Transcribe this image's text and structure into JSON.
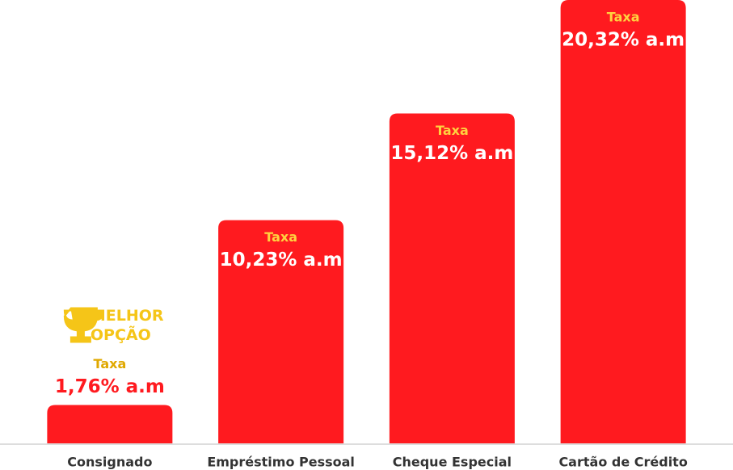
{
  "chart_data": {
    "type": "bar",
    "categories": [
      "Consignado",
      "Empréstimo Pessoal",
      "Cheque Especial",
      "Cartão de Crédito"
    ],
    "values": [
      1.76,
      10.23,
      15.12,
      20.32
    ],
    "value_labels": [
      "1,76% a.m",
      "10,23% a.m",
      "15,12% a.m",
      "20,32% a.m"
    ],
    "bar_caption": "Taxa",
    "color": "#ff1a1f",
    "annotation": {
      "lines": [
        "MELHOR",
        "OPÇÃO"
      ],
      "category": "Consignado"
    }
  }
}
